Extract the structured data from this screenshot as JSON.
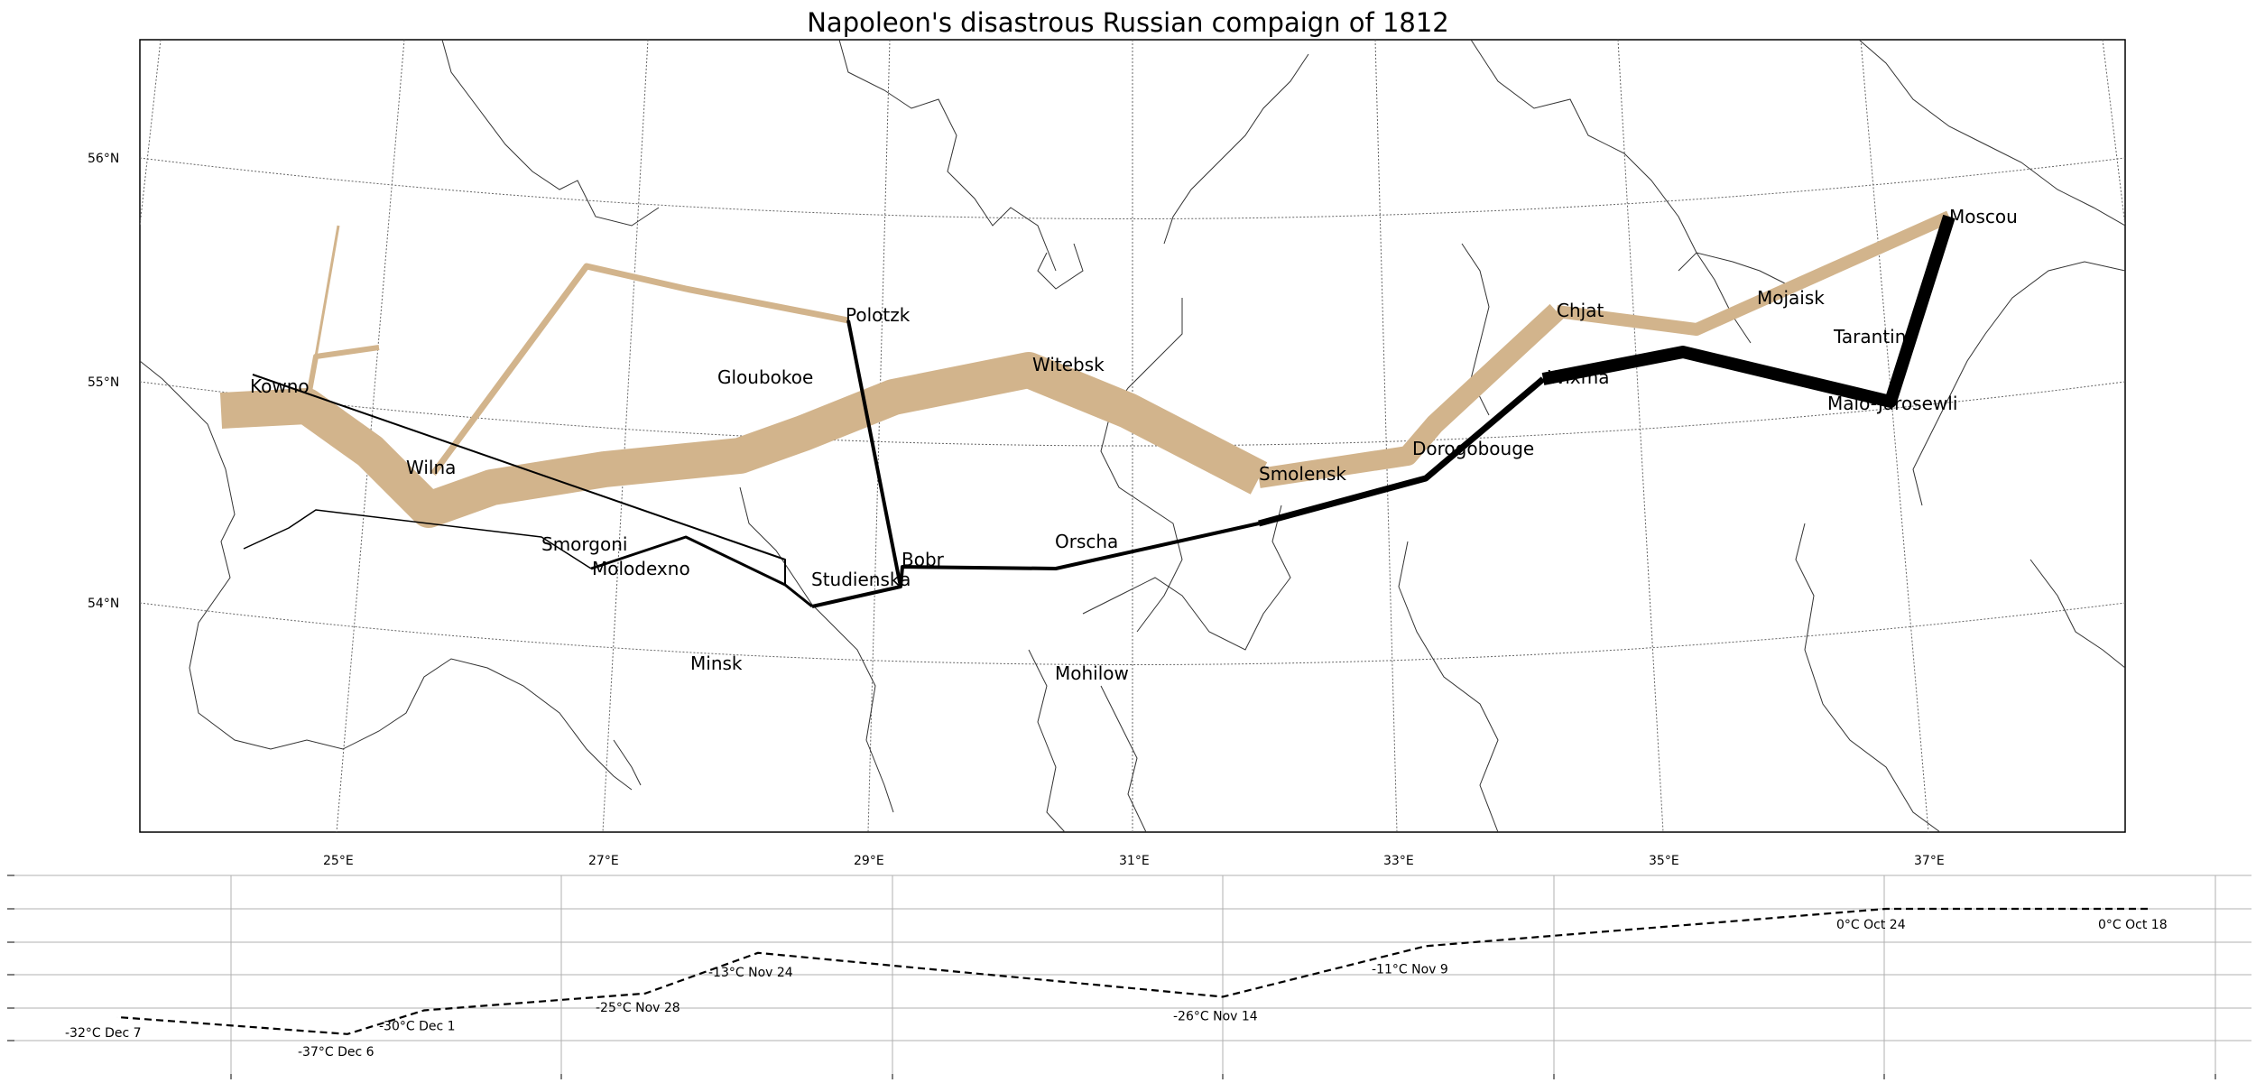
{
  "title": "Napoleon's disastrous Russian compaign of 1812",
  "colors": {
    "advance": "#d2b48c",
    "retreat": "#000000",
    "river": "#333333",
    "grid": "#666666"
  },
  "axis_labels": {
    "lat": [
      "56°N",
      "55°N",
      "54°N"
    ],
    "lon": [
      "25°E",
      "27°E",
      "29°E",
      "31°E",
      "33°E",
      "35°E",
      "37°E"
    ]
  },
  "cities": [
    "Moscou",
    "Mojaisk",
    "Chjat",
    "Tarantin",
    "Malo-Jarosewli",
    "Wixma",
    "Dorogobouge",
    "Smolensk",
    "Witebsk",
    "Orscha",
    "Mohilow",
    "Polotzk",
    "Gloubokoe",
    "Bobr",
    "Studienska",
    "Minsk",
    "Molodexno",
    "Smorgoni",
    "Wilna",
    "Kowno"
  ],
  "temperature_labels": [
    "0°C Oct 18",
    "0°C Oct 24",
    "-11°C Nov 9",
    "-26°C Nov 14",
    "-13°C Nov 24",
    "-25°C Nov 28",
    "-30°C Dec 1",
    "-37°C Dec 6",
    "-32°C Dec 7"
  ],
  "chart_data": {
    "type": "line",
    "title": "",
    "series": [
      {
        "values": [
          {
            "label": "0°C Oct 18",
            "temp": 0
          },
          {
            "label": "0°C Oct 24",
            "temp": 0
          },
          {
            "label": "-11°C Nov 9",
            "temp": -11
          },
          {
            "label": "-26°C Nov 14",
            "temp": -26
          },
          {
            "label": "-13°C Nov 24",
            "temp": -13
          },
          {
            "label": "-25°C Nov 28",
            "temp": -25
          },
          {
            "label": "-30°C Dec 1",
            "temp": -30
          },
          {
            "label": "-37°C Dec 6",
            "temp": -37
          },
          {
            "label": "-32°C Dec 7",
            "temp": -32
          }
        ]
      }
    ],
    "grid": true
  }
}
